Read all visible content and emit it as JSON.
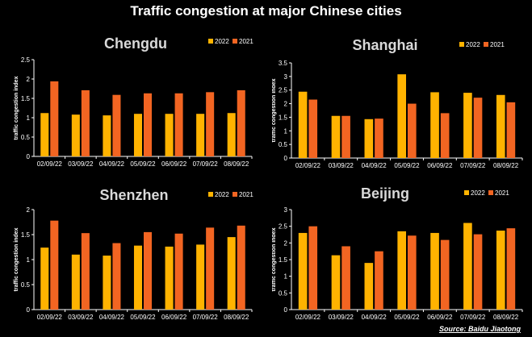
{
  "title": "Traffic congestion at major Chinese cities",
  "source": "Source: Baidu Jiaotong",
  "colors": {
    "y2022": "#FFB300",
    "y2021": "#F26522",
    "panel_bg": "#000000",
    "axis": "#ffffff"
  },
  "chart_data": [
    {
      "type": "bar",
      "title": "Chengdu",
      "ylabel": "traffic congestion index",
      "xlabel": "",
      "categories": [
        "02/09/22",
        "03/09/22",
        "04/09/22",
        "05/09/22",
        "06/09/22",
        "07/09/22",
        "08/09/22"
      ],
      "series": [
        {
          "name": "2022",
          "values": [
            1.12,
            1.08,
            1.06,
            1.1,
            1.1,
            1.1,
            1.12
          ]
        },
        {
          "name": "2021",
          "values": [
            1.94,
            1.71,
            1.59,
            1.63,
            1.63,
            1.66,
            1.71
          ]
        }
      ],
      "ylim": [
        0,
        2.5
      ],
      "yticks": [
        "0",
        "0.5",
        "1",
        "1.5",
        "2",
        "2.5"
      ],
      "legend": "top-right"
    },
    {
      "type": "bar",
      "title": "Shanghai",
      "ylabel": "traffic congestion index",
      "xlabel": "",
      "categories": [
        "02/09/22",
        "03/09/22",
        "04/09/22",
        "05/09/22",
        "06/09/22",
        "07/09/22",
        "08/09/22"
      ],
      "series": [
        {
          "name": "2022",
          "values": [
            2.44,
            1.55,
            1.43,
            3.08,
            2.42,
            2.4,
            2.32
          ]
        },
        {
          "name": "2021",
          "values": [
            2.15,
            1.55,
            1.45,
            2.0,
            1.65,
            2.22,
            2.05
          ]
        }
      ],
      "ylim": [
        0,
        3.5
      ],
      "yticks": [
        "0",
        "0.5",
        "1",
        "1.5",
        "2",
        "2.5",
        "3",
        "3.5"
      ],
      "legend": "top-right"
    },
    {
      "type": "bar",
      "title": "Shenzhen",
      "ylabel": "traffic congestion index",
      "xlabel": "",
      "categories": [
        "02/09/22",
        "03/09/22",
        "04/09/22",
        "05/09/22",
        "06/09/22",
        "07/09/22",
        "08/09/22"
      ],
      "series": [
        {
          "name": "2022",
          "values": [
            1.24,
            1.1,
            1.08,
            1.28,
            1.26,
            1.3,
            1.45
          ]
        },
        {
          "name": "2021",
          "values": [
            1.78,
            1.53,
            1.33,
            1.55,
            1.52,
            1.64,
            1.68
          ]
        }
      ],
      "ylim": [
        0,
        2
      ],
      "yticks": [
        "0",
        "0.5",
        "1",
        "1.5",
        "2"
      ],
      "legend": "top-right"
    },
    {
      "type": "bar",
      "title": "Beijing",
      "ylabel": "traffic congestion index",
      "xlabel": "",
      "categories": [
        "02/09/22",
        "03/09/22",
        "04/09/22",
        "05/09/22",
        "06/09/22",
        "07/09/22",
        "08/09/22"
      ],
      "series": [
        {
          "name": "2022",
          "values": [
            2.3,
            1.63,
            1.4,
            2.35,
            2.3,
            2.6,
            2.37
          ]
        },
        {
          "name": "2021",
          "values": [
            2.5,
            1.9,
            1.75,
            2.22,
            2.09,
            2.26,
            2.44
          ]
        }
      ],
      "ylim": [
        0,
        3
      ],
      "yticks": [
        "0",
        "0.5",
        "1",
        "1.5",
        "2",
        "2.5",
        "3"
      ],
      "legend": "top-right"
    }
  ]
}
